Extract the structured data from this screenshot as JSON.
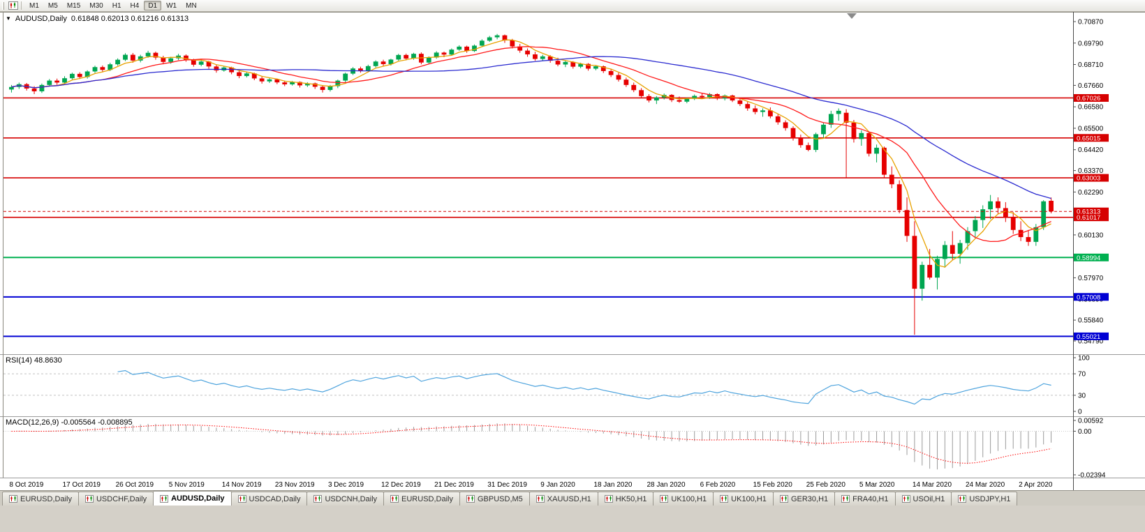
{
  "colors": {
    "candle_up": "#00a651",
    "candle_down": "#e60000",
    "background": "#ffffff",
    "axis_text": "#000000",
    "separator": "#9a9a9a"
  },
  "toolbar": {
    "periods": [
      "M1",
      "M5",
      "M15",
      "M30",
      "H1",
      "H4",
      "D1",
      "W1",
      "MN"
    ],
    "active_period": "D1"
  },
  "chart": {
    "title_symbol": "AUDUSD,Daily",
    "title_ohlc": "0.61848 0.62013 0.61216 0.61313"
  },
  "chart_data": {
    "type": "candlestick",
    "symbol": "AUDUSD",
    "timeframe": "Daily",
    "current_bar": {
      "open": "0.61848",
      "high": "0.62013",
      "low": "0.61216",
      "close": "0.61313"
    },
    "price_range": {
      "top": 0.7087,
      "bottom": 0.5479
    },
    "y_axis_labels": [
      "0.70870",
      "0.69790",
      "0.68710",
      "0.67660",
      "0.66580",
      "0.65500",
      "0.64420",
      "0.63370",
      "0.62290",
      "0.61210",
      "0.60130",
      "0.59050",
      "0.57970",
      "0.56890",
      "0.55840",
      "0.54790"
    ],
    "x_labels": [
      "8 Oct 2019",
      "17 Oct 2019",
      "26 Oct 2019",
      "5 Nov 2019",
      "14 Nov 2019",
      "23 Nov 2019",
      "3 Dec 2019",
      "12 Dec 2019",
      "21 Dec 2019",
      "31 Dec 2019",
      "9 Jan 2020",
      "18 Jan 2020",
      "28 Jan 2020",
      "6 Feb 2020",
      "15 Feb 2020",
      "25 Feb 2020",
      "5 Mar 2020",
      "14 Mar 2020",
      "24 Mar 2020",
      "2 Apr 2020"
    ],
    "label_every_n_bars": 7,
    "horizontal_levels": [
      {
        "price": 0.67026,
        "label": "0.67026",
        "color": "#d60000",
        "width": 1.6
      },
      {
        "price": 0.65015,
        "label": "0.65015",
        "color": "#d60000",
        "width": 1.6
      },
      {
        "price": 0.63003,
        "label": "0.63003",
        "color": "#d60000",
        "width": 1.6
      },
      {
        "price": 0.61017,
        "label": "0.61017",
        "color": "#d60000",
        "width": 1.6
      },
      {
        "price": 0.58994,
        "label": "0.58994",
        "color": "#00b050",
        "width": 2
      },
      {
        "price": 0.57008,
        "label": "0.57008",
        "color": "#0000d4",
        "width": 2
      },
      {
        "price": 0.55021,
        "label": "0.55021",
        "color": "#0000d4",
        "width": 2
      }
    ],
    "current_price": {
      "value": 0.61313,
      "label": "0.61313",
      "color": "#d60000"
    },
    "moving_averages": [
      {
        "name": "fast",
        "period": 5,
        "color": "#e8a200"
      },
      {
        "name": "medium",
        "period": 13,
        "color": "#ff1a1a"
      },
      {
        "name": "slow",
        "period": 34,
        "color": "#2b2bd0"
      }
    ],
    "indicators": [
      {
        "name": "RSI",
        "label": "RSI(14) 48.8630",
        "value": "48.8630",
        "levels": [
          70,
          30
        ],
        "axis_labels": [
          "100",
          "70",
          "30",
          "0"
        ],
        "range": [
          0,
          100
        ],
        "color": "#4da3dd"
      },
      {
        "name": "MACD",
        "label": "MACD(12,26,9) -0.005564 -0.008895",
        "values": "-0.005564 -0.008895",
        "axis_labels": [
          "0.00592",
          "0.00",
          "-0.02394"
        ],
        "range": [
          -0.02394,
          0.00592
        ],
        "histogram_color": "#9a9a9a",
        "signal_color": "#ff0000"
      }
    ],
    "candles": [
      [
        0.6745,
        0.6768,
        0.673,
        0.6758
      ],
      [
        0.6758,
        0.678,
        0.6748,
        0.6772
      ],
      [
        0.6772,
        0.6778,
        0.674,
        0.675
      ],
      [
        0.675,
        0.6762,
        0.6722,
        0.6736
      ],
      [
        0.6736,
        0.6775,
        0.6728,
        0.6768
      ],
      [
        0.6768,
        0.6798,
        0.676,
        0.679
      ],
      [
        0.679,
        0.68,
        0.6768,
        0.678
      ],
      [
        0.678,
        0.6812,
        0.6772,
        0.6802
      ],
      [
        0.6802,
        0.683,
        0.6795,
        0.6824
      ],
      [
        0.6824,
        0.6832,
        0.6798,
        0.6808
      ],
      [
        0.6808,
        0.6842,
        0.68,
        0.6836
      ],
      [
        0.6836,
        0.6865,
        0.6828,
        0.6858
      ],
      [
        0.6858,
        0.6866,
        0.6832,
        0.6844
      ],
      [
        0.6844,
        0.688,
        0.6838,
        0.6872
      ],
      [
        0.6872,
        0.6902,
        0.6865,
        0.6895
      ],
      [
        0.6895,
        0.6928,
        0.6888,
        0.692
      ],
      [
        0.692,
        0.6929,
        0.688,
        0.6891
      ],
      [
        0.6891,
        0.692,
        0.6882,
        0.6912
      ],
      [
        0.6912,
        0.694,
        0.6905,
        0.693
      ],
      [
        0.693,
        0.6936,
        0.6895,
        0.6906
      ],
      [
        0.6906,
        0.6915,
        0.6872,
        0.6884
      ],
      [
        0.6884,
        0.691,
        0.6875,
        0.6902
      ],
      [
        0.6902,
        0.6925,
        0.6894,
        0.6916
      ],
      [
        0.6916,
        0.6922,
        0.6885,
        0.6893
      ],
      [
        0.6893,
        0.69,
        0.686,
        0.687
      ],
      [
        0.687,
        0.6892,
        0.6862,
        0.6886
      ],
      [
        0.6886,
        0.689,
        0.685,
        0.6861
      ],
      [
        0.6861,
        0.687,
        0.683,
        0.6841
      ],
      [
        0.6841,
        0.6862,
        0.6835,
        0.6856
      ],
      [
        0.6856,
        0.686,
        0.6822,
        0.6832
      ],
      [
        0.6832,
        0.684,
        0.6802,
        0.6813
      ],
      [
        0.6813,
        0.6832,
        0.6806,
        0.6826
      ],
      [
        0.6826,
        0.683,
        0.6792,
        0.6801
      ],
      [
        0.6801,
        0.681,
        0.6775,
        0.6786
      ],
      [
        0.6786,
        0.6802,
        0.6778,
        0.6796
      ],
      [
        0.6796,
        0.68,
        0.6772,
        0.6781
      ],
      [
        0.6781,
        0.679,
        0.6762,
        0.6771
      ],
      [
        0.6771,
        0.6788,
        0.6765,
        0.6783
      ],
      [
        0.6783,
        0.6786,
        0.6755,
        0.6766
      ],
      [
        0.6766,
        0.6782,
        0.6758,
        0.6776
      ],
      [
        0.6776,
        0.678,
        0.6748,
        0.6759
      ],
      [
        0.6759,
        0.6765,
        0.673,
        0.6743
      ],
      [
        0.6743,
        0.6768,
        0.6735,
        0.6762
      ],
      [
        0.6762,
        0.6795,
        0.6752,
        0.679
      ],
      [
        0.679,
        0.683,
        0.6782,
        0.6825
      ],
      [
        0.6825,
        0.6858,
        0.6818,
        0.6851
      ],
      [
        0.6851,
        0.686,
        0.683,
        0.6839
      ],
      [
        0.6839,
        0.687,
        0.6832,
        0.6863
      ],
      [
        0.6863,
        0.6892,
        0.6856,
        0.6886
      ],
      [
        0.6886,
        0.6895,
        0.6862,
        0.6873
      ],
      [
        0.6873,
        0.69,
        0.6866,
        0.6896
      ],
      [
        0.6896,
        0.6925,
        0.689,
        0.6919
      ],
      [
        0.6919,
        0.6926,
        0.6892,
        0.6901
      ],
      [
        0.6901,
        0.693,
        0.6895,
        0.6925
      ],
      [
        0.6925,
        0.6932,
        0.6872,
        0.6881
      ],
      [
        0.6881,
        0.6912,
        0.6875,
        0.6906
      ],
      [
        0.6906,
        0.6938,
        0.69,
        0.6931
      ],
      [
        0.6931,
        0.6936,
        0.6908,
        0.6921
      ],
      [
        0.6921,
        0.6952,
        0.6915,
        0.6946
      ],
      [
        0.6946,
        0.6968,
        0.694,
        0.6961
      ],
      [
        0.6961,
        0.6966,
        0.693,
        0.6939
      ],
      [
        0.6939,
        0.6972,
        0.6934,
        0.6966
      ],
      [
        0.6966,
        0.6998,
        0.696,
        0.6991
      ],
      [
        0.6991,
        0.7015,
        0.6985,
        0.7008
      ],
      [
        0.7008,
        0.7025,
        0.6998,
        0.7018
      ],
      [
        0.7018,
        0.7022,
        0.698,
        0.6992
      ],
      [
        0.6992,
        0.7,
        0.6952,
        0.6962
      ],
      [
        0.6962,
        0.6975,
        0.693,
        0.6941
      ],
      [
        0.6941,
        0.6952,
        0.691,
        0.6922
      ],
      [
        0.6922,
        0.6935,
        0.689,
        0.6899
      ],
      [
        0.6899,
        0.692,
        0.6888,
        0.6912
      ],
      [
        0.6912,
        0.6918,
        0.688,
        0.689
      ],
      [
        0.689,
        0.6905,
        0.6862,
        0.6871
      ],
      [
        0.6871,
        0.689,
        0.6858,
        0.6884
      ],
      [
        0.6884,
        0.6888,
        0.685,
        0.686
      ],
      [
        0.686,
        0.688,
        0.6852,
        0.6874
      ],
      [
        0.6874,
        0.6878,
        0.684,
        0.685
      ],
      [
        0.685,
        0.6868,
        0.6842,
        0.6862
      ],
      [
        0.6862,
        0.6866,
        0.6828,
        0.6838
      ],
      [
        0.6838,
        0.685,
        0.6808,
        0.6818
      ],
      [
        0.6818,
        0.683,
        0.6785,
        0.6795
      ],
      [
        0.6795,
        0.6805,
        0.6758,
        0.6768
      ],
      [
        0.6768,
        0.678,
        0.6732,
        0.6742
      ],
      [
        0.6742,
        0.6752,
        0.6702,
        0.6712
      ],
      [
        0.6712,
        0.6722,
        0.668,
        0.669
      ],
      [
        0.669,
        0.6712,
        0.6672,
        0.6705
      ],
      [
        0.6705,
        0.6725,
        0.6695,
        0.6718
      ],
      [
        0.6718,
        0.6722,
        0.6682,
        0.6692
      ],
      [
        0.6692,
        0.671,
        0.6678,
        0.6684
      ],
      [
        0.6684,
        0.6705,
        0.6676,
        0.6698
      ],
      [
        0.6698,
        0.672,
        0.6692,
        0.6713
      ],
      [
        0.6713,
        0.6726,
        0.67,
        0.6707
      ],
      [
        0.6707,
        0.6728,
        0.6698,
        0.6722
      ],
      [
        0.6722,
        0.6726,
        0.6692,
        0.67
      ],
      [
        0.67,
        0.672,
        0.669,
        0.6715
      ],
      [
        0.6715,
        0.6719,
        0.6682,
        0.669
      ],
      [
        0.669,
        0.6702,
        0.6662,
        0.6672
      ],
      [
        0.6672,
        0.6685,
        0.6638,
        0.665
      ],
      [
        0.665,
        0.6665,
        0.662,
        0.6632
      ],
      [
        0.6632,
        0.665,
        0.6608,
        0.664
      ],
      [
        0.664,
        0.6655,
        0.66,
        0.661
      ],
      [
        0.661,
        0.6622,
        0.6568,
        0.658
      ],
      [
        0.658,
        0.659,
        0.6538,
        0.6551
      ],
      [
        0.6551,
        0.656,
        0.6488,
        0.65
      ],
      [
        0.65,
        0.6518,
        0.6452,
        0.6465
      ],
      [
        0.6465,
        0.6478,
        0.6434,
        0.6441
      ],
      [
        0.6441,
        0.6528,
        0.643,
        0.652
      ],
      [
        0.652,
        0.6578,
        0.6502,
        0.6568
      ],
      [
        0.6568,
        0.6638,
        0.6552,
        0.6622
      ],
      [
        0.6622,
        0.665,
        0.6588,
        0.6638
      ],
      [
        0.6628,
        0.6646,
        0.6302,
        0.6578
      ],
      [
        0.6578,
        0.6592,
        0.6478,
        0.6496
      ],
      [
        0.6496,
        0.654,
        0.6462,
        0.6526
      ],
      [
        0.6526,
        0.6532,
        0.6408,
        0.6422
      ],
      [
        0.6422,
        0.6468,
        0.6378,
        0.6452
      ],
      [
        0.6452,
        0.6458,
        0.6302,
        0.6316
      ],
      [
        0.6316,
        0.6358,
        0.6248,
        0.6268
      ],
      [
        0.6268,
        0.6288,
        0.6122,
        0.6138
      ],
      [
        0.6138,
        0.6202,
        0.5978,
        0.6008
      ],
      [
        0.6008,
        0.6082,
        0.551,
        0.5742
      ],
      [
        0.5742,
        0.5878,
        0.5682,
        0.5862
      ],
      [
        0.5862,
        0.5942,
        0.5788,
        0.5798
      ],
      [
        0.5798,
        0.5908,
        0.5738,
        0.5892
      ],
      [
        0.5892,
        0.5982,
        0.5848,
        0.5962
      ],
      [
        0.5962,
        0.6032,
        0.5888,
        0.5918
      ],
      [
        0.5918,
        0.5988,
        0.5868,
        0.5972
      ],
      [
        0.5972,
        0.6052,
        0.5938,
        0.6032
      ],
      [
        0.6032,
        0.6108,
        0.5998,
        0.6088
      ],
      [
        0.6088,
        0.6162,
        0.6048,
        0.6142
      ],
      [
        0.6142,
        0.6214,
        0.6092,
        0.6182
      ],
      [
        0.6182,
        0.6202,
        0.6118,
        0.6148
      ],
      [
        0.6148,
        0.6178,
        0.6078,
        0.6102
      ],
      [
        0.6102,
        0.6128,
        0.6018,
        0.6038
      ],
      [
        0.6038,
        0.6082,
        0.5982,
        0.6002
      ],
      [
        0.6002,
        0.6038,
        0.5958,
        0.5978
      ],
      [
        0.5978,
        0.6068,
        0.5958,
        0.6052
      ],
      [
        0.6052,
        0.6188,
        0.6038,
        0.6182
      ],
      [
        0.61848,
        0.62013,
        0.61216,
        0.61313
      ]
    ]
  },
  "tabs": {
    "active_index": 2,
    "items": [
      {
        "label": "EURUSD,Daily"
      },
      {
        "label": "USDCHF,Daily"
      },
      {
        "label": "AUDUSD,Daily"
      },
      {
        "label": "USDCAD,Daily"
      },
      {
        "label": "USDCNH,Daily"
      },
      {
        "label": "EURUSD,Daily"
      },
      {
        "label": "GBPUSD,M5"
      },
      {
        "label": "XAUUSD,H1"
      },
      {
        "label": "HK50,H1"
      },
      {
        "label": "UK100,H1"
      },
      {
        "label": "UK100,H1"
      },
      {
        "label": "GER30,H1"
      },
      {
        "label": "FRA40,H1"
      },
      {
        "label": "USOil,H1"
      },
      {
        "label": "USDJPY,H1"
      }
    ]
  }
}
